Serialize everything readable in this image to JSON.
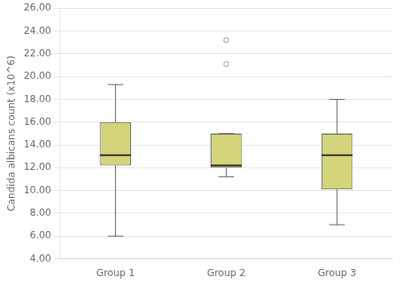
{
  "chart_data": {
    "type": "box",
    "categories": [
      "Group 1",
      "Group 2",
      "Group 3"
    ],
    "boxes": [
      {
        "q1": 12.2,
        "median": 13.1,
        "q3": 16.0,
        "whisker_low": 6.0,
        "whisker_high": 19.3,
        "outliers": []
      },
      {
        "q1": 12.0,
        "median": 12.2,
        "q3": 15.0,
        "whisker_low": 11.2,
        "whisker_high": 15.0,
        "outliers": [
          21.1,
          23.2
        ]
      },
      {
        "q1": 10.1,
        "median": 13.1,
        "q3": 15.0,
        "whisker_low": 7.0,
        "whisker_high": 18.0,
        "outliers": []
      }
    ],
    "ylabel": "Candida albicans count (x10^6)",
    "ylim": [
      4.0,
      26.0
    ],
    "yticks": [
      {
        "value": 4.0,
        "label": "4.00"
      },
      {
        "value": 6.0,
        "label": "6.00"
      },
      {
        "value": 8.0,
        "label": "8.00"
      },
      {
        "value": 10.0,
        "label": "10.00"
      },
      {
        "value": 12.0,
        "label": "12.00"
      },
      {
        "value": 14.0,
        "label": "14.00"
      },
      {
        "value": 16.0,
        "label": "16.00"
      },
      {
        "value": 18.0,
        "label": "18.00"
      },
      {
        "value": 20.0,
        "label": "20.00"
      },
      {
        "value": 22.0,
        "label": "22.00"
      },
      {
        "value": 24.0,
        "label": "24.00"
      },
      {
        "value": 26.0,
        "label": "26.00"
      }
    ],
    "color": "#d4d47a",
    "grid": true
  }
}
